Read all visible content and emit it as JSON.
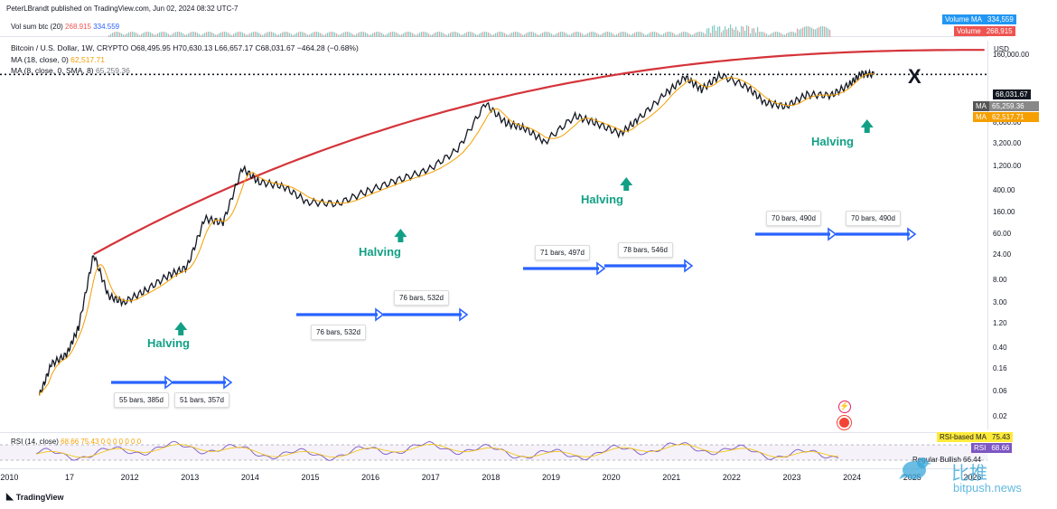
{
  "header": {
    "published": "PeterLBrandt published on TradingView.com, Jun 02, 2024 08:32 UTC-7"
  },
  "volume_pane": {
    "label": "Vol sum btc (20)",
    "value1": "268.915",
    "value2": "334.559",
    "tag_volume_ma": "Volume MA",
    "tag_volume_ma_value": "334,559",
    "tag_volume": "Volume",
    "tag_volume_value": "268,915"
  },
  "legend": {
    "symbol": "Bitcoin / U.S. Dollar, 1W, CRYPTO",
    "ohlc": "O68,495.95 H70,630.13 L66,657.17 C68,031.67 −464.28 (−0.68%)",
    "ma1_label": "MA (18, close, 0)",
    "ma1_value": "62,517.71",
    "ma2_label": "MA (8, close, 0, SMA, 8)",
    "ma2_value": "65,259.36"
  },
  "price_axis": {
    "currency": "USD",
    "ticks": [
      "160,000.00",
      "8,000.00",
      "3,200.00",
      "1,200.00",
      "400.00",
      "160.00",
      "60.00",
      "24.00",
      "8.00",
      "3.00",
      "1.20",
      "0.40",
      "0.16",
      "0.06",
      "0.02"
    ],
    "last_price": "68,031.67",
    "ma_tag1": "MA",
    "ma_tag1_value": "65,259.36",
    "ma_tag2": "MA",
    "ma_tag2_value": "62,517.71"
  },
  "time_axis": [
    "2010",
    "17",
    "2012",
    "2013",
    "2014",
    "2015",
    "2016",
    "2017",
    "2018",
    "2019",
    "2020",
    "2021",
    "2022",
    "2023",
    "2024",
    "2025",
    "2026"
  ],
  "annotations": {
    "cross": "X",
    "halvings": [
      "Halving",
      "Halving",
      "Halving",
      "Halving"
    ],
    "bars": [
      "55 bars, 385d",
      "51 bars, 357d",
      "76 bars, 532d",
      "76 bars, 532d",
      "71 bars, 497d",
      "78 bars, 546d",
      "70 bars, 490d",
      "70 bars, 490d"
    ]
  },
  "rsi_pane": {
    "label": "RSI (14, close)",
    "values": "68.66 75.43 0 0 0 0 0 0 0",
    "tag_rsi_ma": "RSI-based MA",
    "tag_rsi_ma_value": "75.43",
    "tag_rsi": "RSI",
    "tag_rsi_value": "68.66",
    "extra": "Regular Bullish",
    "extra_value": "66.44"
  },
  "footer": {
    "brand": "TradingView"
  },
  "watermark": {
    "cn": "比推",
    "en": "bitpush.news"
  },
  "colors": {
    "curve": "#d4343a",
    "arrow": "#2962ff",
    "halving": "#12a085",
    "ma18": "#f59f00",
    "ma8": "#555555",
    "rsi": "#7e57c2"
  },
  "chart_data": {
    "type": "line",
    "title": "Bitcoin / U.S. Dollar, 1W, CRYPTO",
    "xlabel": "",
    "ylabel": "",
    "y_scale": "log",
    "series": [
      {
        "name": "Bitcoin / U.S. Dollar",
        "x": [
          2010.55,
          2010.75,
          2011.0,
          2011.2,
          2011.45,
          2011.7,
          2011.95,
          2012.3,
          2012.7,
          2013.0,
          2013.3,
          2013.6,
          2013.92,
          2014.2,
          2014.6,
          2015.0,
          2015.5,
          2016.0,
          2016.5,
          2017.0,
          2017.5,
          2017.96,
          2018.3,
          2018.6,
          2018.95,
          2019.45,
          2019.8,
          2020.2,
          2020.5,
          2020.95,
          2021.28,
          2021.55,
          2021.86,
          2022.3,
          2022.6,
          2022.95,
          2023.3,
          2023.7,
          2024.0,
          2024.2,
          2024.42
        ],
        "y": [
          0.05,
          0.2,
          0.3,
          1.0,
          25.0,
          4.0,
          3.0,
          5.0,
          10.0,
          14.0,
          120.0,
          100.0,
          1100.0,
          600.0,
          500.0,
          250.0,
          230.0,
          400.0,
          650.0,
          1000.0,
          2500.0,
          19000.0,
          8000.0,
          6500.0,
          3500.0,
          11000.0,
          8000.0,
          5000.0,
          9500.0,
          29000.0,
          60000.0,
          35000.0,
          66000.0,
          40000.0,
          20000.0,
          16500.0,
          28000.0,
          27000.0,
          43000.0,
          70000.0,
          68031.67
        ]
      }
    ],
    "ylim": [
      0.01,
      300000
    ],
    "xlim": [
      2010.0,
      2026.3
    ]
  }
}
